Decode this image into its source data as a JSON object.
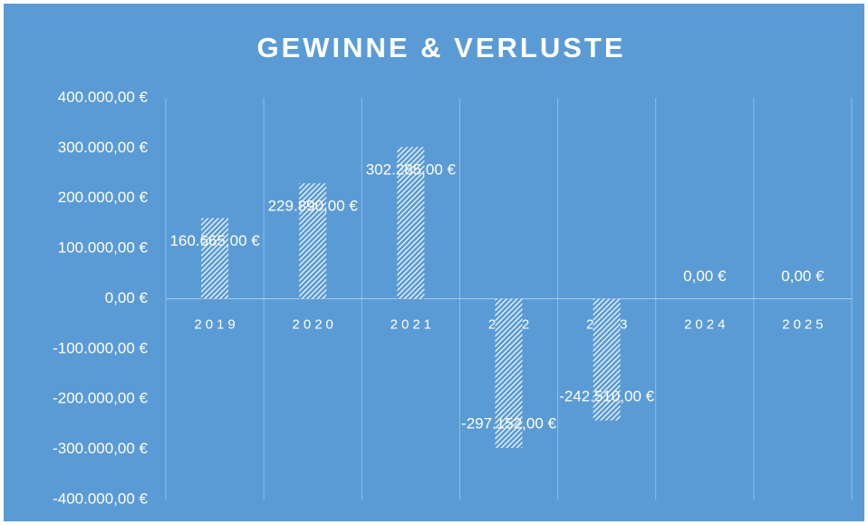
{
  "chart_data": {
    "type": "bar",
    "title": "GEWINNE & VERLUSTE",
    "categories": [
      "2019",
      "2020",
      "2021",
      "2022",
      "2023",
      "2024",
      "2025"
    ],
    "values": [
      160665,
      229890,
      302285,
      -297152,
      -242510,
      0,
      0
    ],
    "value_labels": [
      "160.665,00 €",
      "229.890,00 €",
      "302.285,00 €",
      "-297.152,00 €",
      "-242.510,00 €",
      "0,00 €",
      "0,00 €"
    ],
    "color": "#ffffff",
    "background": "#5b9bd5",
    "ylim": [
      -400000,
      400000
    ],
    "yticks": [
      {
        "value": -400000,
        "label": "-400.000,00 €"
      },
      {
        "value": -300000,
        "label": "-300.000,00 €"
      },
      {
        "value": -200000,
        "label": "-200.000,00 €"
      },
      {
        "value": -100000,
        "label": "-100.000,00 €"
      },
      {
        "value": 0,
        "label": "0,00 €"
      },
      {
        "value": 100000,
        "label": "100.000,00 €"
      },
      {
        "value": 200000,
        "label": "200.000,00 €"
      },
      {
        "value": 300000,
        "label": "300.000,00 €"
      },
      {
        "value": 400000,
        "label": "400.000,00 €"
      }
    ],
    "grid": true
  }
}
